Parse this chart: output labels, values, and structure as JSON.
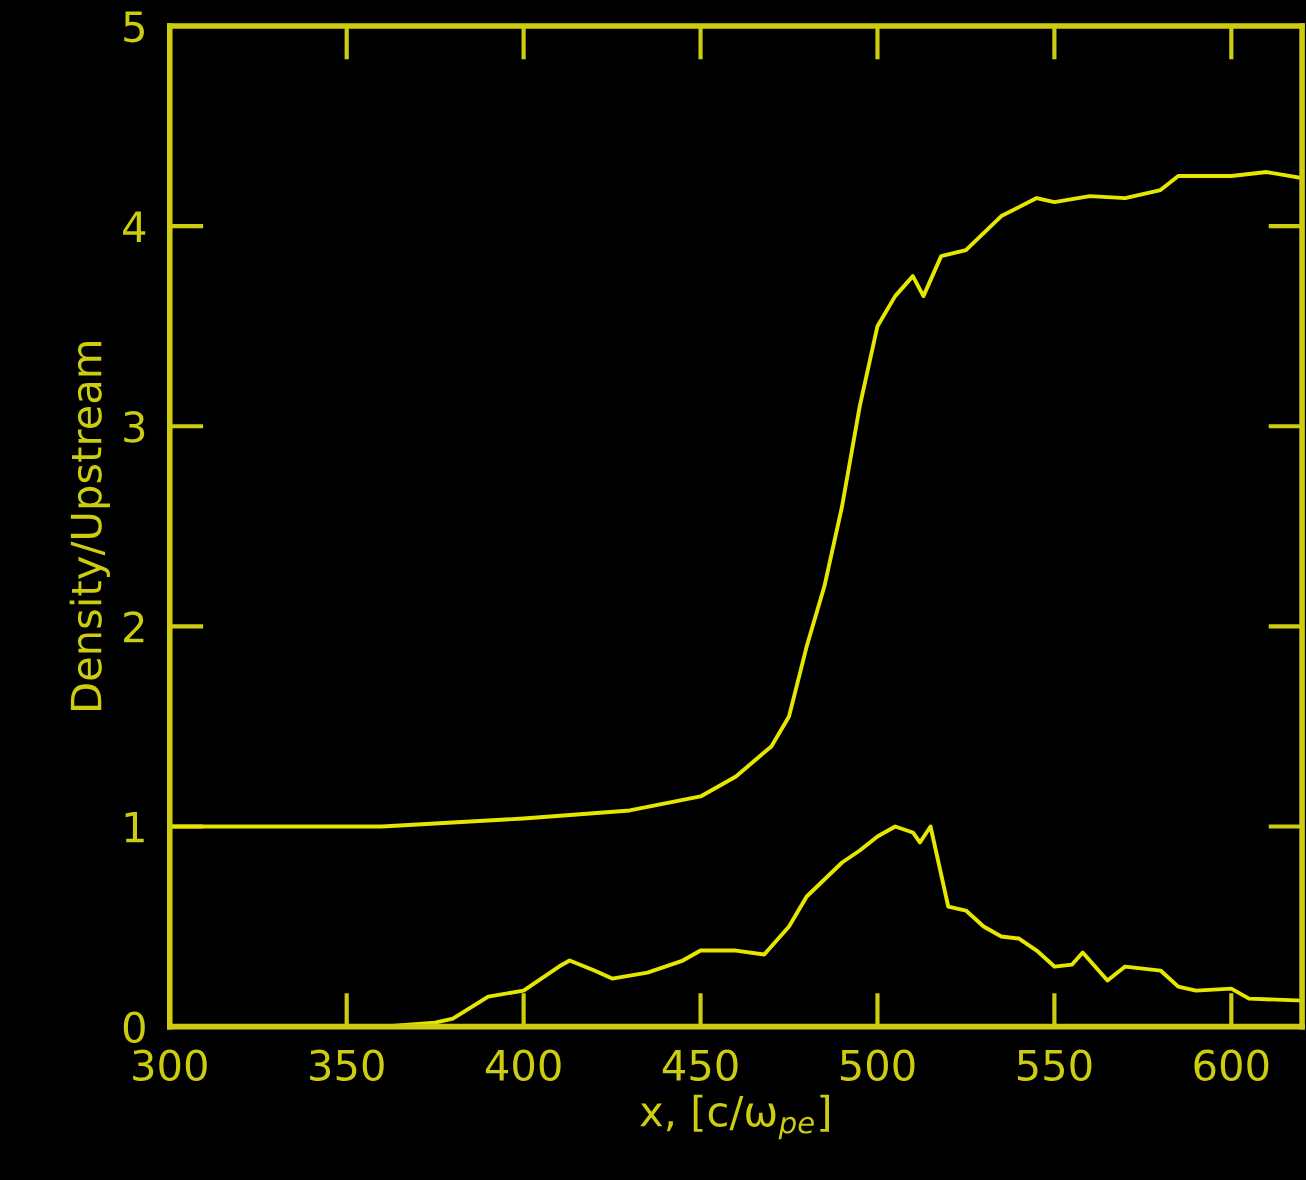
{
  "chart_data": {
    "type": "line",
    "xlabel": "x, [c/ω$_{pe}$]",
    "ylabel": "Density/Upstream",
    "xlim": [
      300,
      620
    ],
    "ylim": [
      0,
      5
    ],
    "xticks": [
      300,
      350,
      400,
      450,
      500,
      550,
      600
    ],
    "yticks": [
      0,
      1,
      2,
      3,
      4,
      5
    ],
    "grid": false,
    "legend": false,
    "marker": "none",
    "line_style": "solid",
    "series": [
      {
        "color": "#e6e600",
        "x": [
          300,
          360,
          400,
          430,
          450,
          460,
          470,
          475,
          480,
          485,
          490,
          495,
          500,
          505,
          510,
          513,
          518,
          525,
          535,
          545,
          550,
          560,
          570,
          580,
          585,
          600,
          610,
          620
        ],
        "values": [
          1.0,
          1.0,
          1.04,
          1.08,
          1.15,
          1.25,
          1.4,
          1.55,
          1.9,
          2.2,
          2.6,
          3.1,
          3.5,
          3.65,
          3.75,
          3.65,
          3.85,
          3.88,
          4.05,
          4.14,
          4.12,
          4.15,
          4.14,
          4.18,
          4.25,
          4.25,
          4.27,
          4.24
        ]
      },
      {
        "color": "#e6e600",
        "x": [
          300,
          360,
          375,
          380,
          390,
          400,
          410,
          413,
          420,
          425,
          435,
          445,
          450,
          460,
          468,
          475,
          480,
          490,
          495,
          500,
          505,
          510,
          512,
          515,
          520,
          525,
          530,
          535,
          540,
          545,
          550,
          555,
          558,
          565,
          570,
          580,
          585,
          590,
          600,
          605,
          620
        ],
        "values": [
          0,
          0,
          0.02,
          0.04,
          0.15,
          0.18,
          0.3,
          0.33,
          0.28,
          0.24,
          0.27,
          0.33,
          0.38,
          0.38,
          0.36,
          0.5,
          0.65,
          0.82,
          0.88,
          0.95,
          1.0,
          0.97,
          0.92,
          1.0,
          0.6,
          0.58,
          0.5,
          0.45,
          0.44,
          0.38,
          0.3,
          0.31,
          0.37,
          0.23,
          0.3,
          0.28,
          0.2,
          0.18,
          0.19,
          0.14,
          0.13
        ]
      }
    ]
  }
}
